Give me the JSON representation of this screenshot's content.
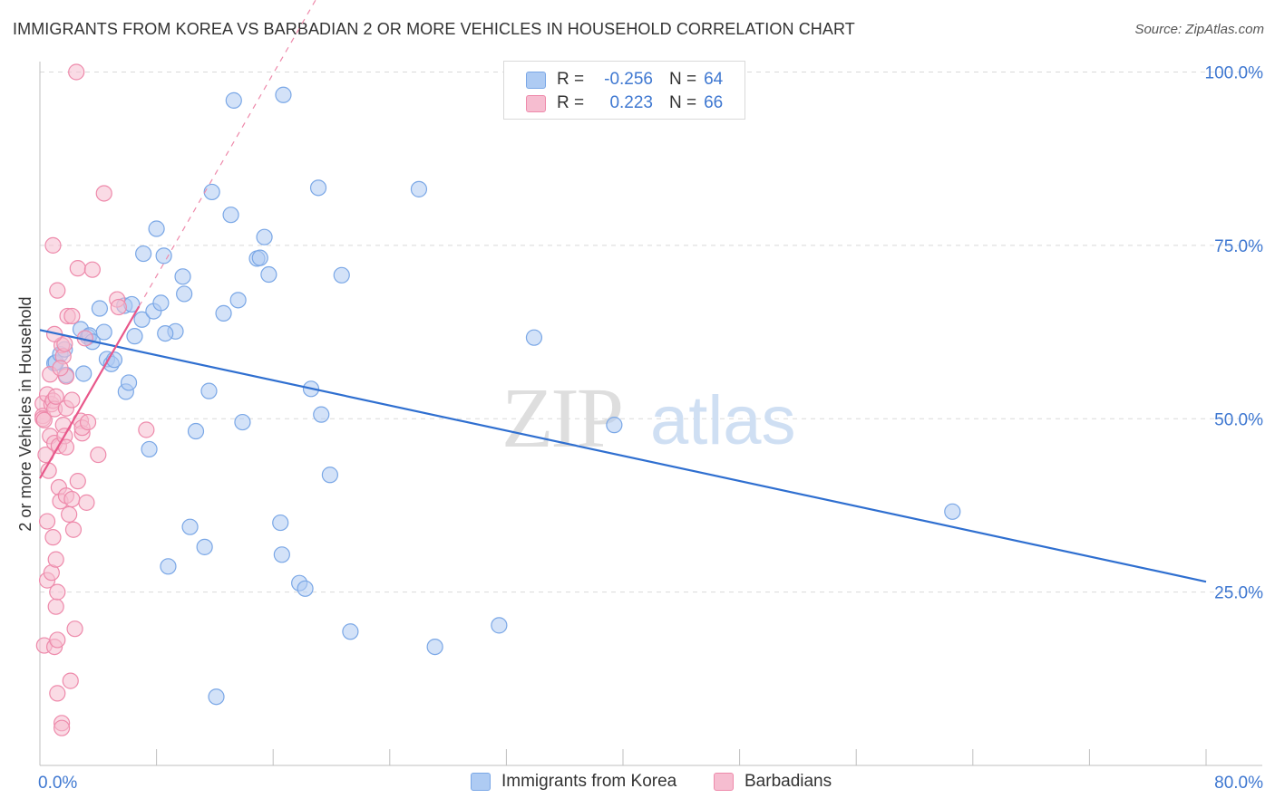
{
  "title": "IMMIGRANTS FROM KOREA VS BARBADIAN 2 OR MORE VEHICLES IN HOUSEHOLD CORRELATION CHART",
  "source": "Source: ZipAtlas.com",
  "watermark": {
    "zip": "ZIP",
    "atlas": "atlas"
  },
  "colors": {
    "blue_fill": "#aecbf3",
    "blue_stroke": "#7aa7e6",
    "blue_line": "#2f6fd0",
    "pink_fill": "#f6bdd0",
    "pink_stroke": "#ee8aab",
    "pink_line": "#e8578a",
    "value_text": "#3f78d1",
    "grid": "#d9d9d9"
  },
  "legend_top": {
    "rows": [
      {
        "label": "R =",
        "r": "-0.256",
        "n_label": "N =",
        "n": "64"
      },
      {
        "label": "R =",
        "r": "0.223",
        "n_label": "N =",
        "n": "66"
      }
    ]
  },
  "legend_bottom": [
    "Immigrants from Korea",
    "Barbadians"
  ],
  "chart_data": {
    "type": "scatter",
    "title": "IMMIGRANTS FROM KOREA VS BARBADIAN 2 OR MORE VEHICLES IN HOUSEHOLD CORRELATION CHART",
    "xlabel": "",
    "ylabel": "2 or more Vehicles in Household",
    "xlim": [
      0,
      80
    ],
    "ylim": [
      0,
      102
    ],
    "x_tick_labels": [
      "0.0%",
      "80.0%"
    ],
    "y_ticks": [
      25,
      50,
      75,
      100
    ],
    "y_tick_labels": [
      "25.0%",
      "50.0%",
      "75.0%",
      "100.0%"
    ],
    "grid": true,
    "legend_position": "top-center",
    "series": [
      {
        "name": "Immigrants from Korea",
        "color": "#aecbf3",
        "r": -0.256,
        "n": 64,
        "trend": {
          "x": [
            0,
            80
          ],
          "y": [
            62.8,
            26.5
          ]
        },
        "points": [
          [
            1.0,
            58.0
          ],
          [
            1.1,
            58.1
          ],
          [
            1.4,
            59.3
          ],
          [
            1.7,
            60.0
          ],
          [
            1.8,
            56.3
          ],
          [
            2.8,
            62.9
          ],
          [
            3.3,
            61.8
          ],
          [
            3.4,
            62.0
          ],
          [
            3.6,
            61.1
          ],
          [
            4.1,
            65.9
          ],
          [
            4.4,
            62.5
          ],
          [
            4.6,
            58.6
          ],
          [
            4.9,
            57.9
          ],
          [
            5.1,
            58.5
          ],
          [
            5.8,
            66.3
          ],
          [
            5.9,
            53.9
          ],
          [
            6.3,
            66.5
          ],
          [
            6.5,
            61.9
          ],
          [
            7.0,
            64.3
          ],
          [
            7.1,
            73.8
          ],
          [
            7.5,
            45.6
          ],
          [
            7.8,
            65.5
          ],
          [
            8.0,
            77.4
          ],
          [
            8.3,
            66.7
          ],
          [
            8.5,
            73.5
          ],
          [
            8.8,
            28.7
          ],
          [
            9.3,
            62.6
          ],
          [
            9.8,
            70.5
          ],
          [
            9.9,
            68.0
          ],
          [
            10.3,
            34.4
          ],
          [
            10.7,
            48.2
          ],
          [
            11.3,
            31.5
          ],
          [
            11.6,
            54.0
          ],
          [
            11.8,
            82.7
          ],
          [
            12.1,
            9.9
          ],
          [
            12.6,
            65.2
          ],
          [
            13.1,
            79.4
          ],
          [
            13.6,
            67.1
          ],
          [
            13.9,
            49.5
          ],
          [
            14.9,
            73.1
          ],
          [
            15.1,
            73.2
          ],
          [
            15.4,
            76.2
          ],
          [
            15.7,
            70.8
          ],
          [
            16.5,
            35.0
          ],
          [
            16.6,
            30.4
          ],
          [
            17.8,
            26.3
          ],
          [
            18.2,
            25.5
          ],
          [
            18.6,
            54.3
          ],
          [
            19.1,
            83.3
          ],
          [
            19.3,
            50.6
          ],
          [
            19.9,
            41.9
          ],
          [
            20.7,
            70.7
          ],
          [
            21.3,
            19.3
          ],
          [
            26.0,
            83.1
          ],
          [
            27.1,
            17.1
          ],
          [
            31.5,
            20.2
          ],
          [
            33.9,
            61.7
          ],
          [
            39.4,
            49.1
          ],
          [
            62.6,
            36.6
          ],
          [
            13.3,
            95.9
          ],
          [
            16.7,
            96.7
          ],
          [
            6.1,
            55.2
          ],
          [
            8.6,
            62.3
          ],
          [
            3.0,
            56.5
          ]
        ]
      },
      {
        "name": "Barbadians",
        "color": "#f6bdd0",
        "r": 0.223,
        "n": 66,
        "trend": {
          "x": [
            0,
            6.8
          ],
          "y": [
            41.4,
            66.2
          ]
        },
        "points": [
          [
            0.2,
            52.2
          ],
          [
            0.2,
            50.4
          ],
          [
            0.2,
            50.0
          ],
          [
            0.3,
            49.8
          ],
          [
            0.3,
            17.3
          ],
          [
            0.4,
            44.8
          ],
          [
            0.5,
            53.5
          ],
          [
            0.5,
            26.7
          ],
          [
            0.5,
            35.2
          ],
          [
            0.6,
            42.5
          ],
          [
            0.7,
            47.5
          ],
          [
            0.7,
            56.4
          ],
          [
            0.8,
            52.1
          ],
          [
            0.8,
            27.8
          ],
          [
            0.9,
            52.6
          ],
          [
            0.9,
            75.0
          ],
          [
            0.9,
            32.9
          ],
          [
            1.0,
            51.4
          ],
          [
            1.0,
            46.5
          ],
          [
            1.0,
            17.1
          ],
          [
            1.1,
            53.2
          ],
          [
            1.1,
            22.9
          ],
          [
            1.1,
            29.7
          ],
          [
            1.2,
            25.0
          ],
          [
            1.2,
            68.5
          ],
          [
            1.2,
            18.1
          ],
          [
            1.2,
            10.4
          ],
          [
            1.3,
            46.1
          ],
          [
            1.3,
            40.1
          ],
          [
            1.4,
            38.1
          ],
          [
            1.5,
            6.1
          ],
          [
            1.5,
            5.4
          ],
          [
            1.5,
            60.6
          ],
          [
            1.6,
            49.1
          ],
          [
            1.6,
            59.0
          ],
          [
            1.7,
            47.5
          ],
          [
            1.7,
            60.8
          ],
          [
            1.8,
            56.1
          ],
          [
            1.8,
            51.5
          ],
          [
            1.8,
            45.9
          ],
          [
            1.8,
            38.9
          ],
          [
            1.9,
            64.8
          ],
          [
            2.0,
            36.2
          ],
          [
            2.1,
            12.2
          ],
          [
            2.2,
            64.8
          ],
          [
            2.2,
            52.7
          ],
          [
            2.2,
            38.4
          ],
          [
            2.4,
            19.7
          ],
          [
            2.3,
            34.0
          ],
          [
            2.6,
            71.7
          ],
          [
            2.8,
            49.7
          ],
          [
            2.9,
            47.9
          ],
          [
            2.9,
            48.7
          ],
          [
            3.1,
            61.6
          ],
          [
            3.2,
            37.9
          ],
          [
            3.3,
            49.5
          ],
          [
            3.6,
            71.5
          ],
          [
            4.0,
            44.8
          ],
          [
            4.4,
            82.5
          ],
          [
            5.3,
            67.2
          ],
          [
            5.4,
            66.1
          ],
          [
            7.3,
            48.4
          ],
          [
            2.5,
            100.0
          ],
          [
            1.0,
            62.2
          ],
          [
            1.4,
            57.3
          ],
          [
            2.6,
            41.0
          ]
        ]
      }
    ]
  }
}
